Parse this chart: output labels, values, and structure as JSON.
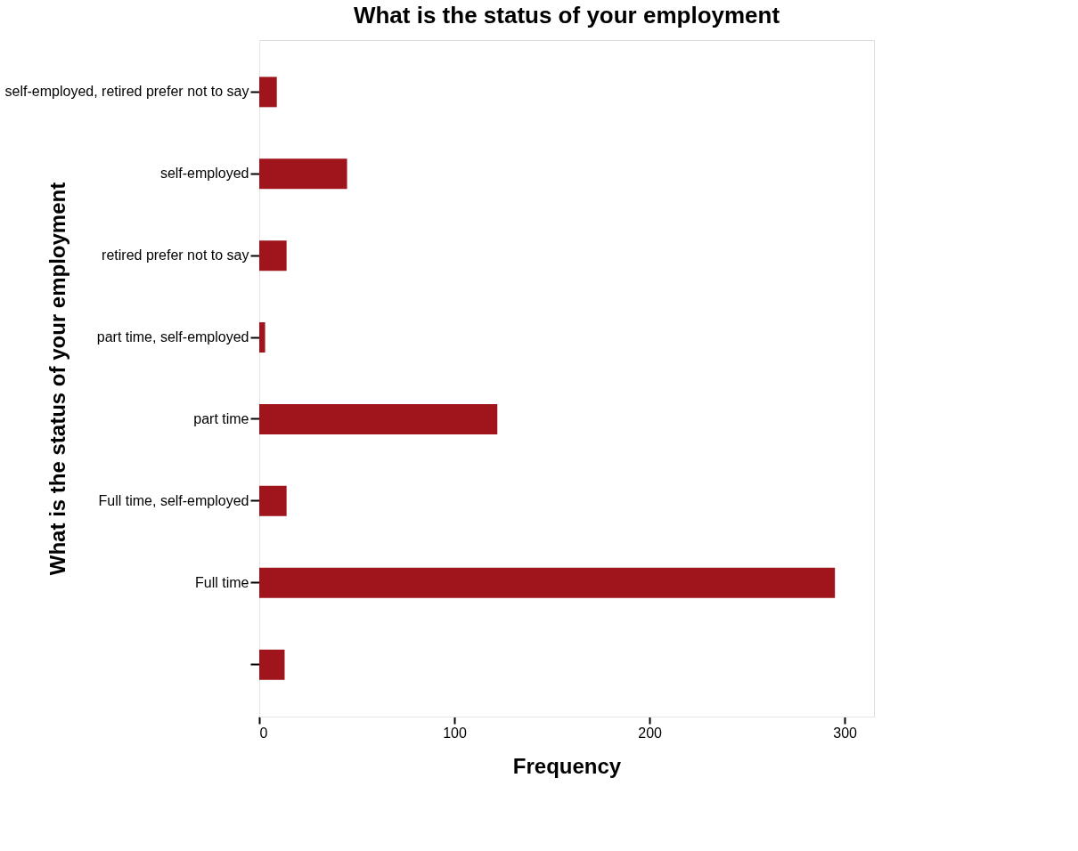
{
  "chart_data": {
    "type": "bar",
    "orientation": "horizontal",
    "title": "What is the status of your employment",
    "xlabel": "Frequency",
    "ylabel": "What is the status of your employment",
    "categories": [
      "self-employed, retired prefer not to say",
      "self-employed",
      "retired prefer not to say",
      "part time, self-employed",
      "part time",
      "Full time, self-employed",
      "Full time",
      null
    ],
    "values": [
      9,
      45,
      14,
      3,
      122,
      14,
      295,
      13
    ],
    "color": "#a0151b",
    "xlim": [
      0,
      315
    ],
    "xticks": [
      0,
      100,
      200,
      300
    ],
    "grid": false
  }
}
